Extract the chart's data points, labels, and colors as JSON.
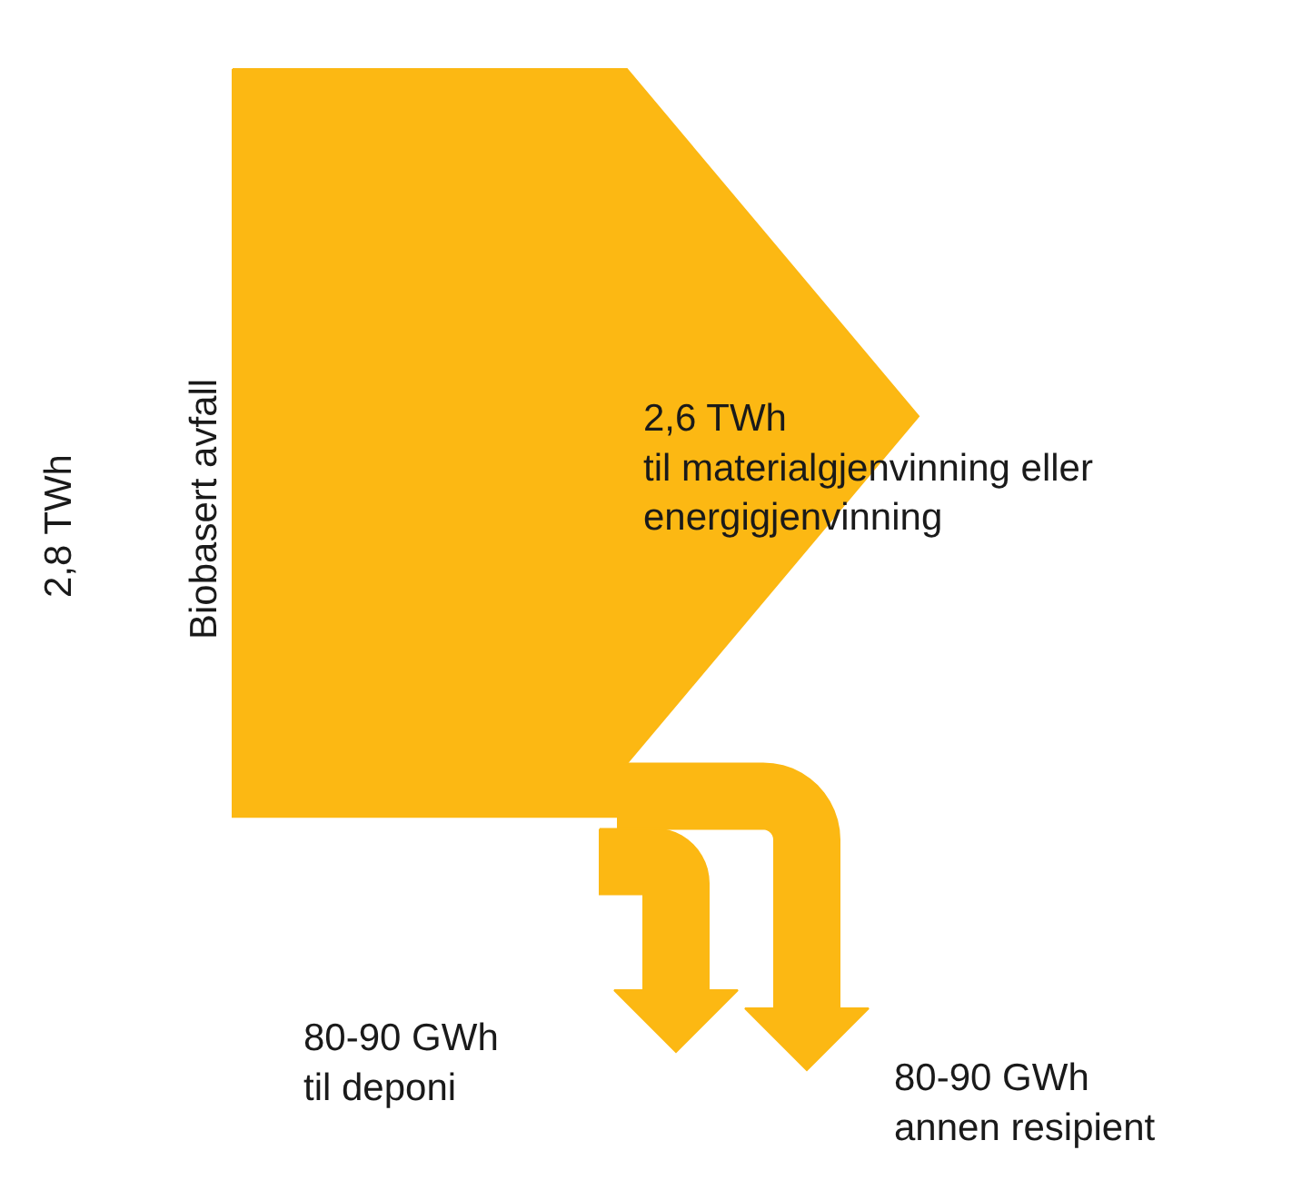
{
  "chart_data": {
    "type": "other",
    "color": "#fcb813",
    "categories": [
      "Biobasert avfall",
      "til materialgjenvinning eller\nenergigjenvinning",
      "til deponi",
      "annen resipient"
    ],
    "values": [
      2.8,
      2.6,
      null,
      null
    ],
    "value_labels": [
      "2,8 TWh",
      "2,6 TWh",
      "80-90 GWh",
      "80-90 GWh"
    ]
  }
}
